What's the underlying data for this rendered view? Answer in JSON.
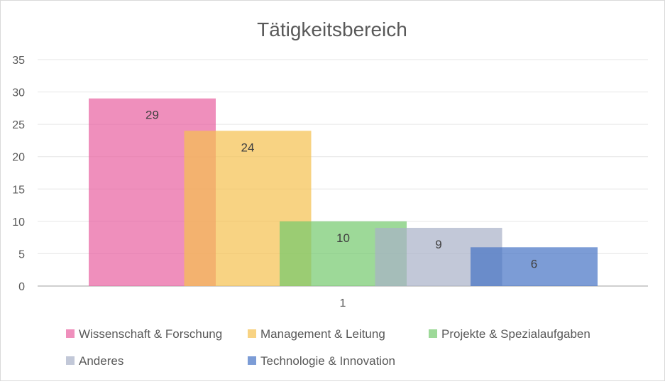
{
  "chart_data": {
    "type": "bar",
    "title": "Tätigkeitsbereich",
    "categories": [
      "1"
    ],
    "series": [
      {
        "name": "Wissenschaft & Forschung",
        "values": [
          29
        ],
        "color": "#e8609f"
      },
      {
        "name": "Management & Leitung",
        "values": [
          24
        ],
        "color": "#f5c04f"
      },
      {
        "name": "Projekte & Spezialaufgaben",
        "values": [
          10
        ],
        "color": "#74c96c"
      },
      {
        "name": "Anderes",
        "values": [
          9
        ],
        "color": "#a8b1c8"
      },
      {
        "name": "Technologie & Innovation",
        "values": [
          6
        ],
        "color": "#4472c4"
      }
    ],
    "ylim": [
      0,
      35
    ],
    "yticks": [
      0,
      5,
      10,
      15,
      20,
      25,
      30,
      35
    ],
    "grid": true,
    "legend": "bottom",
    "xlabel": "",
    "ylabel": ""
  }
}
